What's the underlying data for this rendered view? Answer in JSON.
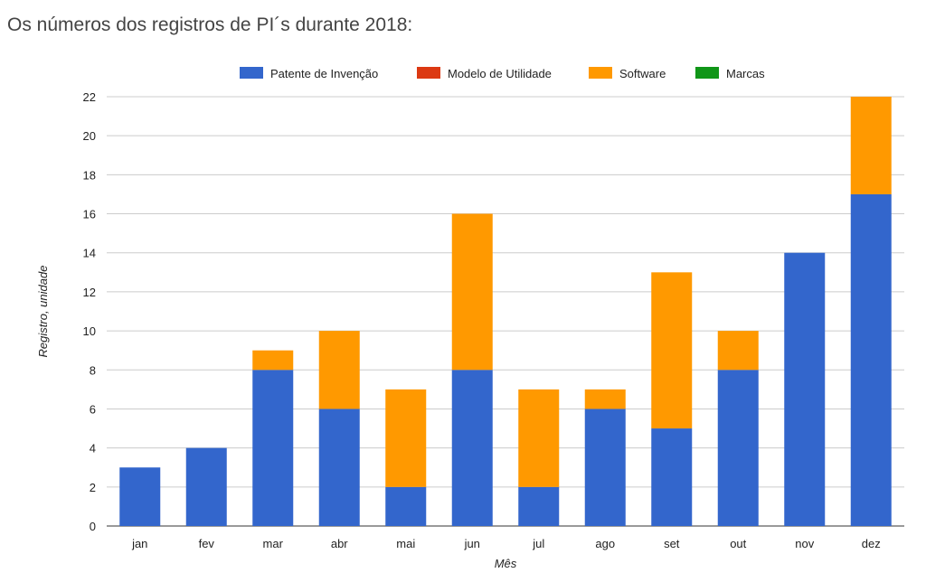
{
  "page_title": "Os números dos registros de PI´s durante 2018:",
  "chart_data": {
    "type": "bar",
    "stacked": true,
    "title": "",
    "xlabel": "Mês",
    "ylabel": "Registro, unidade",
    "ylim": [
      0,
      22
    ],
    "yticks": [
      0,
      2,
      4,
      6,
      8,
      10,
      12,
      14,
      16,
      18,
      20,
      22
    ],
    "grid": true,
    "legend_position": "top",
    "categories": [
      "jan",
      "fev",
      "mar",
      "abr",
      "mai",
      "jun",
      "jul",
      "ago",
      "set",
      "out",
      "nov",
      "dez"
    ],
    "series": [
      {
        "name": "Patente de Invenção",
        "color": "#3366cc",
        "values": [
          3,
          4,
          8,
          6,
          2,
          8,
          2,
          6,
          5,
          8,
          14,
          17
        ]
      },
      {
        "name": "Modelo de Utilidade",
        "color": "#dc3912",
        "values": [
          0,
          0,
          0,
          0,
          0,
          0,
          0,
          0,
          0,
          0,
          0,
          0
        ]
      },
      {
        "name": "Software",
        "color": "#ff9900",
        "values": [
          0,
          0,
          1,
          4,
          5,
          8,
          5,
          1,
          8,
          2,
          0,
          5
        ]
      },
      {
        "name": "Marcas",
        "color": "#109618",
        "values": [
          0,
          0,
          0,
          0,
          0,
          0,
          0,
          0,
          0,
          0,
          0,
          0
        ]
      }
    ]
  }
}
